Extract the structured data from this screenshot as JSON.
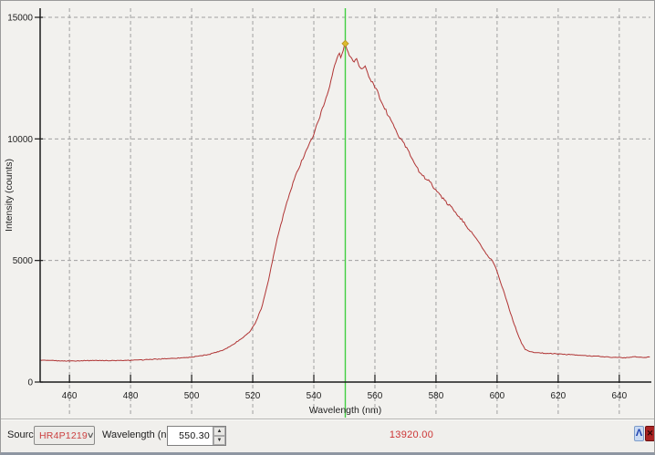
{
  "window": {
    "bg_color": "#f2f1ee",
    "plot_bg_color": "#f2f1ee",
    "grid_color": "#a0a0a0",
    "axis_color": "#1a1a1a",
    "text_color": "#222222"
  },
  "chart_data": {
    "type": "line",
    "title": "",
    "xlabel": "Wavelength (nm)",
    "ylabel": "Intensity (counts)",
    "xlim": [
      450.4,
      650.2
    ],
    "ylim": [
      0,
      15000
    ],
    "x_ticks": [
      460,
      480,
      500,
      520,
      540,
      560,
      580,
      600,
      620,
      640
    ],
    "y_ticks": [
      0,
      5000,
      10000,
      15000
    ],
    "grid": true,
    "line_color": "#b03434",
    "cursor": {
      "wavelength": 550.3,
      "intensity": 13920.0,
      "line_color": "#41cf41",
      "marker_color": "#ddbb2c"
    },
    "series": [
      {
        "name": "HR4P1219",
        "color": "#b03434",
        "points": [
          [
            450,
            900
          ],
          [
            455,
            880
          ],
          [
            460,
            870
          ],
          [
            465,
            880
          ],
          [
            470,
            890
          ],
          [
            475,
            880
          ],
          [
            480,
            895
          ],
          [
            485,
            920
          ],
          [
            490,
            950
          ],
          [
            495,
            985
          ],
          [
            500,
            1025
          ],
          [
            505,
            1120
          ],
          [
            510,
            1300
          ],
          [
            513,
            1500
          ],
          [
            516,
            1760
          ],
          [
            519,
            2060
          ],
          [
            521,
            2460
          ],
          [
            523,
            3100
          ],
          [
            525,
            4100
          ],
          [
            527,
            5300
          ],
          [
            529,
            6400
          ],
          [
            531,
            7300
          ],
          [
            533,
            8100
          ],
          [
            535,
            8800
          ],
          [
            537,
            9400
          ],
          [
            539,
            9900
          ],
          [
            541,
            10600
          ],
          [
            543,
            11300
          ],
          [
            545,
            12100
          ],
          [
            547,
            13100
          ],
          [
            548,
            13500
          ],
          [
            549,
            13350
          ],
          [
            550,
            13850
          ],
          [
            550.3,
            13920
          ],
          [
            551,
            13600
          ],
          [
            552,
            13400
          ],
          [
            553,
            13150
          ],
          [
            554,
            13350
          ],
          [
            555,
            13000
          ],
          [
            556,
            12850
          ],
          [
            557,
            13000
          ],
          [
            558,
            12550
          ],
          [
            559,
            12300
          ],
          [
            560,
            12150
          ],
          [
            561,
            11900
          ],
          [
            562,
            11500
          ],
          [
            563,
            11350
          ],
          [
            564,
            11050
          ],
          [
            565,
            10850
          ],
          [
            566,
            10600
          ],
          [
            567,
            10300
          ],
          [
            568,
            10050
          ],
          [
            569,
            9950
          ],
          [
            570,
            9700
          ],
          [
            571,
            9500
          ],
          [
            572,
            9250
          ],
          [
            573,
            9000
          ],
          [
            574,
            8800
          ],
          [
            575,
            8550
          ],
          [
            576,
            8450
          ],
          [
            577,
            8300
          ],
          [
            578,
            8250
          ],
          [
            579,
            8050
          ],
          [
            580,
            7900
          ],
          [
            581,
            7750
          ],
          [
            582,
            7600
          ],
          [
            583,
            7450
          ],
          [
            584,
            7300
          ],
          [
            585,
            7200
          ],
          [
            586,
            7050
          ],
          [
            587,
            6900
          ],
          [
            588,
            6750
          ],
          [
            590,
            6400
          ],
          [
            592,
            6100
          ],
          [
            594,
            5750
          ],
          [
            596,
            5350
          ],
          [
            597,
            5150
          ],
          [
            598,
            5050
          ],
          [
            599,
            4850
          ],
          [
            600,
            4550
          ],
          [
            601,
            4150
          ],
          [
            602,
            3800
          ],
          [
            603,
            3400
          ],
          [
            604,
            3000
          ],
          [
            605,
            2600
          ],
          [
            606,
            2250
          ],
          [
            607,
            1900
          ],
          [
            608,
            1600
          ],
          [
            609,
            1380
          ],
          [
            610,
            1280
          ],
          [
            612,
            1220
          ],
          [
            615,
            1190
          ],
          [
            618,
            1170
          ],
          [
            621,
            1150
          ],
          [
            624,
            1130
          ],
          [
            627,
            1100
          ],
          [
            630,
            1080
          ],
          [
            633,
            1060
          ],
          [
            636,
            1030
          ],
          [
            639,
            1010
          ],
          [
            642,
            1000
          ],
          [
            645,
            1040
          ],
          [
            648,
            1010
          ],
          [
            650,
            1030
          ]
        ]
      }
    ]
  },
  "toolbar": {
    "source_label": "Source:",
    "source_value": "HR4P1219",
    "source_value_color": "#cb3f3f",
    "wavelength_label": "Wavelength (nm):",
    "wavelength_value": "550.30",
    "intensity_readout": "13920.00",
    "readout_color": "#cc3434"
  },
  "icons": {
    "peak_glyph": "Λ",
    "close_glyph": "✕",
    "combobox_chevron": "∨",
    "spin_up": "▲",
    "spin_down": "▼"
  }
}
